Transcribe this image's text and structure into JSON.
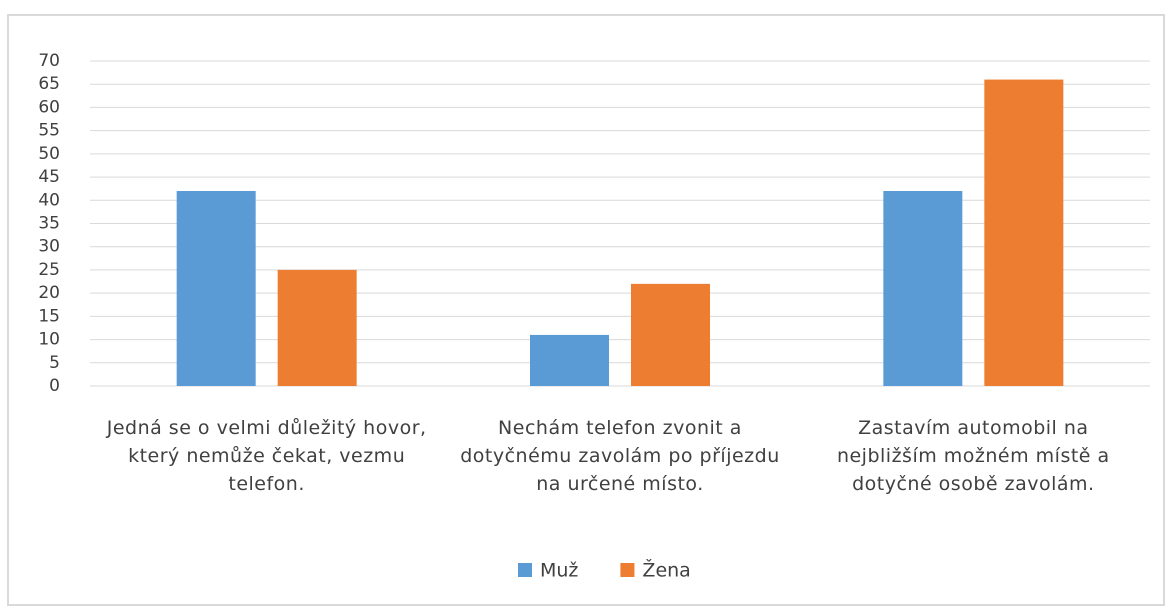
{
  "chart_data": {
    "type": "bar",
    "categories": [
      "Jedná se o velmi důležitý hovor, který nemůže čekat, vezmu telefon.",
      "Nechám telefon zvonit a dotyčnému zavolám po příjezdu na určené místo.",
      "Zastavím automobil na nejbližším možném místě a dotyčné osobě zavolám."
    ],
    "series": [
      {
        "name": "Muž",
        "color": "#5b9bd5",
        "values": [
          42,
          11,
          42
        ]
      },
      {
        "name": "Žena",
        "color": "#ed7d31",
        "values": [
          25,
          22,
          66
        ]
      }
    ],
    "ylim": [
      0,
      70
    ],
    "yticks": [
      0,
      5,
      10,
      15,
      20,
      25,
      30,
      35,
      40,
      45,
      50,
      55,
      60,
      65,
      70
    ],
    "grid": true,
    "legend": "bottom"
  }
}
